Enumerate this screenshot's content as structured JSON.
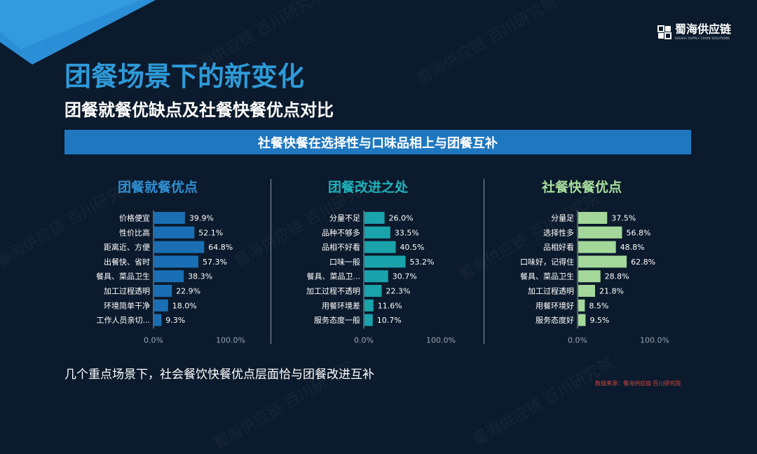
{
  "title": "团餐场景下的新变化",
  "subtitle": "团餐就餐优缺点及社餐快餐优点对比",
  "banner": "社餐快餐在选择性与口味品相上与团餐互补",
  "logo": {
    "name": "蜀海供应链",
    "sub": "SHUHAI SUPPLY CHAIN SOLUTIONS"
  },
  "watermark_text": "蜀海供应链 百川研究院",
  "footnote": "几个重点场景下，社会餐饮快餐优点层面恰与团餐改进互补",
  "source": "数据来源：蜀海供应链·百川研究院",
  "colors": {
    "title": "#2e9ad8",
    "banner": "#1f77c0",
    "background": "#0b1a2c",
    "source": "#d2473d"
  },
  "chart_data": [
    {
      "type": "bar",
      "orientation": "horizontal",
      "title": "团餐就餐优点",
      "title_color": "#2f8fd3",
      "bar_color": "#1a6fb4",
      "categories": [
        "价格便宜",
        "性价比高",
        "距离近、方便",
        "出餐快、省时",
        "餐具、菜品卫生",
        "加工过程透明",
        "环境简单干净",
        "工作人员亲切..."
      ],
      "values": [
        39.9,
        52.1,
        64.8,
        57.3,
        38.3,
        22.9,
        18.0,
        9.3
      ],
      "labels": [
        "39.9%",
        "52.1%",
        "64.8%",
        "57.3%",
        "38.3%",
        "22.9%",
        "18.0%",
        "9.3%"
      ],
      "xlim": [
        0,
        100
      ],
      "xticks": [
        "0.0%",
        "100.0%"
      ]
    },
    {
      "type": "bar",
      "orientation": "horizontal",
      "title": "团餐改进之处",
      "title_color": "#1fb3bb",
      "bar_color": "#1aa3ab",
      "categories": [
        "分量不足",
        "品种不够多",
        "品相不好看",
        "口味一般",
        "餐具、菜品卫...",
        "加工过程不透明",
        "用餐环境差",
        "服务态度一般"
      ],
      "values": [
        26.0,
        33.5,
        40.5,
        53.2,
        30.7,
        22.3,
        11.6,
        10.7
      ],
      "labels": [
        "26.0%",
        "33.5%",
        "40.5%",
        "53.2%",
        "30.7%",
        "22.3%",
        "11.6%",
        "10.7%"
      ],
      "xlim": [
        0,
        100
      ],
      "xticks": [
        "0.0%",
        "100.0%"
      ]
    },
    {
      "type": "bar",
      "orientation": "horizontal",
      "title": "社餐快餐优点",
      "title_color": "#a8dd9c",
      "bar_color": "#a3d89a",
      "categories": [
        "分量足",
        "选择性多",
        "品相好看",
        "口味好，记得住",
        "餐具、菜品卫生",
        "加工过程透明",
        "用餐环境好",
        "服务态度好"
      ],
      "values": [
        37.5,
        56.8,
        48.8,
        62.8,
        28.8,
        21.8,
        8.5,
        9.5
      ],
      "labels": [
        "37.5%",
        "56.8%",
        "48.8%",
        "62.8%",
        "28.8%",
        "21.8%",
        "8.5%",
        "9.5%"
      ],
      "xlim": [
        0,
        100
      ],
      "xticks": [
        "0.0%",
        "100.0%"
      ]
    }
  ]
}
